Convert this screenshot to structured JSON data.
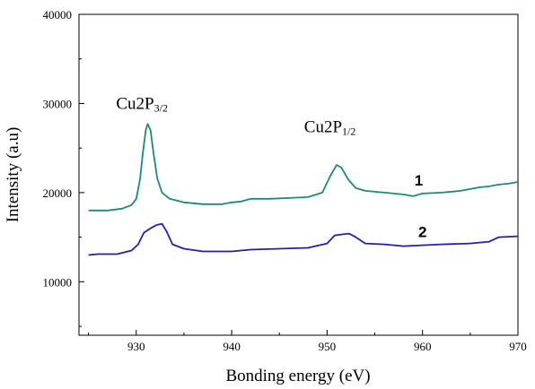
{
  "chart_data": {
    "type": "line",
    "xlabel": "Bonding energy (eV)",
    "ylabel": "Intensity (a.u)",
    "xlim": [
      924,
      970
    ],
    "ylim": [
      4000,
      40000
    ],
    "x_ticks": [
      930,
      940,
      950,
      960,
      970
    ],
    "x_tick_labels": [
      "930",
      "940",
      "950",
      "960",
      "970"
    ],
    "y_ticks": [
      10000,
      20000,
      30000,
      40000
    ],
    "y_tick_labels": [
      "10000",
      "20000",
      "30000",
      "40000"
    ],
    "grid": false,
    "annotations": [
      {
        "base": "Cu2P",
        "sub": "3/2",
        "x": 930.6,
        "y": 29400
      },
      {
        "base": "Cu2P",
        "sub": "1/2",
        "x": 950.3,
        "y": 26800
      }
    ],
    "series": [
      {
        "label": "1",
        "label_pos": [
          959.6,
          20800
        ],
        "color": "#1a8a7a",
        "points": [
          [
            925,
            18000
          ],
          [
            927,
            18000
          ],
          [
            928.5,
            18200
          ],
          [
            929.5,
            18600
          ],
          [
            930,
            19300
          ],
          [
            930.4,
            21500
          ],
          [
            930.7,
            24500
          ],
          [
            931,
            27000
          ],
          [
            931.2,
            27700
          ],
          [
            931.5,
            27000
          ],
          [
            931.8,
            24500
          ],
          [
            932.2,
            21600
          ],
          [
            932.7,
            20000
          ],
          [
            933.5,
            19300
          ],
          [
            935,
            18900
          ],
          [
            937,
            18700
          ],
          [
            939,
            18700
          ],
          [
            940,
            18900
          ],
          [
            941,
            19000
          ],
          [
            942,
            19300
          ],
          [
            944,
            19300
          ],
          [
            946,
            19400
          ],
          [
            948,
            19500
          ],
          [
            949.5,
            20000
          ],
          [
            950.3,
            21800
          ],
          [
            951,
            23100
          ],
          [
            951.5,
            22800
          ],
          [
            952.2,
            21500
          ],
          [
            953,
            20500
          ],
          [
            954,
            20200
          ],
          [
            956,
            20000
          ],
          [
            958,
            19800
          ],
          [
            959,
            19600
          ],
          [
            960,
            19900
          ],
          [
            962,
            20000
          ],
          [
            964,
            20200
          ],
          [
            965,
            20400
          ],
          [
            966,
            20600
          ],
          [
            967,
            20700
          ],
          [
            968,
            20900
          ],
          [
            969,
            21000
          ],
          [
            970,
            21200
          ]
        ]
      },
      {
        "label": "2",
        "label_pos": [
          960,
          15000
        ],
        "color": "#1f1fb4",
        "points": [
          [
            925,
            13000
          ],
          [
            926,
            13100
          ],
          [
            928,
            13100
          ],
          [
            929.5,
            13500
          ],
          [
            930.2,
            14200
          ],
          [
            930.8,
            15500
          ],
          [
            931.5,
            16000
          ],
          [
            932.2,
            16400
          ],
          [
            932.7,
            16500
          ],
          [
            933.2,
            15600
          ],
          [
            933.8,
            14200
          ],
          [
            935,
            13700
          ],
          [
            937,
            13400
          ],
          [
            940,
            13400
          ],
          [
            942,
            13600
          ],
          [
            945,
            13700
          ],
          [
            948,
            13800
          ],
          [
            950,
            14300
          ],
          [
            950.8,
            15200
          ],
          [
            951.5,
            15300
          ],
          [
            952.3,
            15400
          ],
          [
            953,
            15000
          ],
          [
            954,
            14300
          ],
          [
            956,
            14200
          ],
          [
            958,
            14000
          ],
          [
            960,
            14100
          ],
          [
            962,
            14200
          ],
          [
            965,
            14300
          ],
          [
            967,
            14500
          ],
          [
            968,
            15000
          ],
          [
            970,
            15100
          ]
        ]
      }
    ]
  }
}
